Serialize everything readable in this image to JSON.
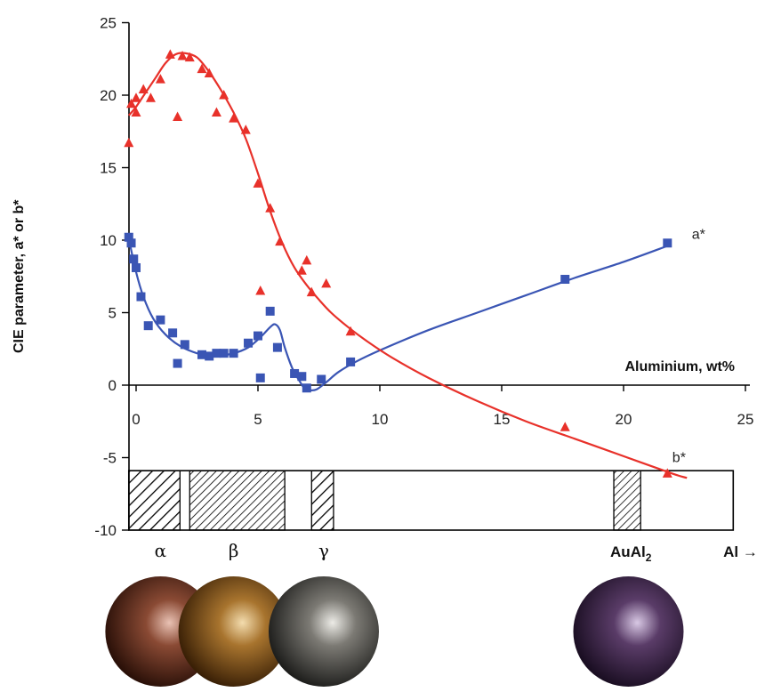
{
  "chart_data": {
    "type": "scatter",
    "xlabel": "Aluminium, wt%",
    "ylabel": "CIE parameter, a* or b*",
    "xlim": [
      0,
      25
    ],
    "ylim": [
      -10,
      25
    ],
    "x_ticks": [
      0,
      5,
      10,
      15,
      20,
      25
    ],
    "y_ticks": [
      -10,
      -5,
      0,
      5,
      10,
      15,
      20,
      25
    ],
    "grid": false,
    "colors": {
      "a_star": "#3a55b4",
      "b_star": "#e8312a"
    },
    "series": [
      {
        "name": "a*",
        "marker": "square",
        "points": [
          [
            -0.3,
            10.2
          ],
          [
            -0.2,
            9.8
          ],
          [
            -0.1,
            8.7
          ],
          [
            0,
            8.1
          ],
          [
            0.2,
            6.1
          ],
          [
            0.5,
            4.1
          ],
          [
            1,
            4.5
          ],
          [
            1.5,
            3.6
          ],
          [
            1.7,
            1.5
          ],
          [
            2,
            2.8
          ],
          [
            2.7,
            2.1
          ],
          [
            3,
            2
          ],
          [
            3.3,
            2.2
          ],
          [
            3.6,
            2.2
          ],
          [
            4,
            2.2
          ],
          [
            4.6,
            2.9
          ],
          [
            5,
            3.4
          ],
          [
            5.1,
            0.5
          ],
          [
            5.5,
            5.1
          ],
          [
            5.8,
            2.6
          ],
          [
            6.5,
            0.8
          ],
          [
            6.8,
            0.6
          ],
          [
            7,
            -0.2
          ],
          [
            7.6,
            0.4
          ],
          [
            8.8,
            1.6
          ],
          [
            17.6,
            7.3
          ],
          [
            21.8,
            9.8
          ]
        ],
        "curve": [
          [
            -0.3,
            10.1
          ],
          [
            0,
            7.8
          ],
          [
            0.3,
            6.1
          ],
          [
            0.7,
            4.6
          ],
          [
            1.2,
            3.5
          ],
          [
            1.8,
            2.7
          ],
          [
            2.5,
            2.2
          ],
          [
            3.2,
            2
          ],
          [
            4,
            2.2
          ],
          [
            4.6,
            2.6
          ],
          [
            5.1,
            3.3
          ],
          [
            5.5,
            4
          ],
          [
            5.7,
            4.2
          ],
          [
            5.9,
            3.8
          ],
          [
            6.1,
            2.6
          ],
          [
            6.4,
            1.2
          ],
          [
            6.7,
            0.3
          ],
          [
            6.9,
            -0.2
          ],
          [
            7.1,
            -0.35
          ],
          [
            7.4,
            -0.3
          ],
          [
            7.8,
            0.2
          ],
          [
            8.3,
            0.9
          ],
          [
            9,
            1.6
          ],
          [
            10,
            2.4
          ],
          [
            12,
            3.8
          ],
          [
            14,
            5
          ],
          [
            16,
            6.2
          ],
          [
            18,
            7.4
          ],
          [
            20,
            8.5
          ],
          [
            21.8,
            9.6
          ]
        ],
        "label_pos": [
          22.8,
          10.1
        ]
      },
      {
        "name": "b*",
        "marker": "triangle",
        "points": [
          [
            -0.3,
            16.7
          ],
          [
            -0.2,
            19.4
          ],
          [
            0,
            18.8
          ],
          [
            0,
            19.8
          ],
          [
            0.3,
            20.4
          ],
          [
            0.6,
            19.8
          ],
          [
            1,
            21.1
          ],
          [
            1.4,
            22.8
          ],
          [
            1.7,
            18.5
          ],
          [
            1.9,
            22.7
          ],
          [
            2.2,
            22.6
          ],
          [
            2.7,
            21.8
          ],
          [
            3,
            21.5
          ],
          [
            3.3,
            18.8
          ],
          [
            3.6,
            20
          ],
          [
            4,
            18.4
          ],
          [
            4.5,
            17.6
          ],
          [
            5,
            13.9
          ],
          [
            5.1,
            6.5
          ],
          [
            5.5,
            12.2
          ],
          [
            5.9,
            9.9
          ],
          [
            6.8,
            7.9
          ],
          [
            7,
            8.6
          ],
          [
            7.2,
            6.4
          ],
          [
            7.8,
            7
          ],
          [
            8.8,
            3.7
          ],
          [
            17.6,
            -2.9
          ],
          [
            21.8,
            -6.1
          ]
        ],
        "curve": [
          [
            -0.3,
            18.6
          ],
          [
            0,
            19.2
          ],
          [
            0.4,
            20.2
          ],
          [
            0.8,
            21.2
          ],
          [
            1.2,
            22.2
          ],
          [
            1.6,
            22.8
          ],
          [
            2,
            22.9
          ],
          [
            2.5,
            22.6
          ],
          [
            3,
            21.6
          ],
          [
            3.5,
            20.3
          ],
          [
            4,
            18.8
          ],
          [
            4.5,
            17
          ],
          [
            5,
            14.6
          ],
          [
            5.5,
            12
          ],
          [
            6,
            9.8
          ],
          [
            6.5,
            8.1
          ],
          [
            7,
            6.9
          ],
          [
            7.5,
            5.9
          ],
          [
            8,
            5
          ],
          [
            8.7,
            4
          ],
          [
            9.5,
            3
          ],
          [
            10.5,
            1.9
          ],
          [
            12,
            0.5
          ],
          [
            14,
            -1.1
          ],
          [
            16,
            -2.5
          ],
          [
            18,
            -3.7
          ],
          [
            20,
            -4.9
          ],
          [
            22,
            -6.1
          ],
          [
            22.6,
            -6.4
          ]
        ],
        "label_pos": [
          22,
          -5.3
        ]
      }
    ],
    "phase_bar": {
      "y_top": -5.9,
      "y_bottom": -10,
      "x_start": -0.3,
      "x_end": 24.5,
      "hatched_regions": [
        {
          "from": -0.3,
          "to": 1.8,
          "hatch": "coarse"
        },
        {
          "from": 2.2,
          "to": 6.1,
          "hatch": "fine"
        },
        {
          "from": 7.2,
          "to": 8.1,
          "hatch": "coarse"
        },
        {
          "from": 19.6,
          "to": 20.7,
          "hatch": "fine"
        }
      ],
      "labels": [
        {
          "text": "α",
          "x": 1,
          "style": "serif"
        },
        {
          "text": "β",
          "x": 4,
          "style": "serif"
        },
        {
          "text": "γ",
          "x": 7.7,
          "style": "serif"
        },
        {
          "text": "AuAl",
          "sub": "2",
          "x": 20.3,
          "style": "bold"
        },
        {
          "text": "Al →",
          "x": 24.8,
          "style": "bold"
        }
      ]
    },
    "swatches": [
      {
        "center_x": 1,
        "color": "#8a4a34",
        "highlight": "#e9c2b4",
        "shadow": "#2a1008"
      },
      {
        "center_x": 4,
        "color": "#a8742e",
        "highlight": "#f3dcae",
        "shadow": "#3a2006"
      },
      {
        "center_x": 7.7,
        "color": "#7c7a74",
        "highlight": "#ecebe6",
        "shadow": "#1e1e1c"
      },
      {
        "center_x": 20.2,
        "color": "#5a3c68",
        "highlight": "#d8c8e4",
        "shadow": "#1a0e22"
      }
    ]
  }
}
